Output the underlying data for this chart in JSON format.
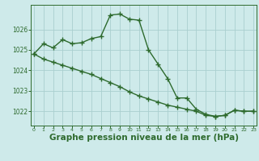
{
  "line1_x": [
    0,
    1,
    2,
    3,
    4,
    5,
    6,
    7,
    8,
    9,
    10,
    11,
    12,
    13,
    14,
    15,
    16,
    17,
    18,
    19,
    20,
    21,
    22,
    23
  ],
  "line1_y": [
    1024.8,
    1025.3,
    1025.1,
    1025.5,
    1025.3,
    1025.35,
    1025.55,
    1025.65,
    1026.7,
    1026.75,
    1026.5,
    1026.45,
    1025.0,
    1024.3,
    1023.6,
    1022.65,
    1022.65,
    1022.1,
    1021.85,
    1021.75,
    1021.8,
    1022.05,
    1022.0,
    1022.0
  ],
  "line2_x": [
    0,
    1,
    2,
    3,
    4,
    5,
    6,
    7,
    8,
    9,
    10,
    11,
    12,
    13,
    14,
    15,
    16,
    17,
    18,
    19,
    20,
    21,
    22,
    23
  ],
  "line2_y": [
    1024.8,
    1024.55,
    1024.4,
    1024.25,
    1024.1,
    1023.95,
    1023.8,
    1023.6,
    1023.4,
    1023.2,
    1022.95,
    1022.75,
    1022.6,
    1022.45,
    1022.3,
    1022.2,
    1022.1,
    1022.0,
    1021.8,
    1021.75,
    1021.8,
    1022.05,
    1022.0,
    1022.0
  ],
  "line_color": "#2d6a2d",
  "bg_color": "#ceeaea",
  "grid_color": "#aacfcf",
  "xlabel": "Graphe pression niveau de la mer (hPa)",
  "ylim_min": 1021.3,
  "ylim_max": 1027.2,
  "yticks": [
    1022,
    1023,
    1024,
    1025,
    1026
  ],
  "xticks": [
    0,
    1,
    2,
    3,
    4,
    5,
    6,
    7,
    8,
    9,
    10,
    11,
    12,
    13,
    14,
    15,
    16,
    17,
    18,
    19,
    20,
    21,
    22,
    23
  ],
  "xlabel_color": "#2d6a2d",
  "marker": "+",
  "linewidth": 1.0,
  "markersize": 4.0
}
